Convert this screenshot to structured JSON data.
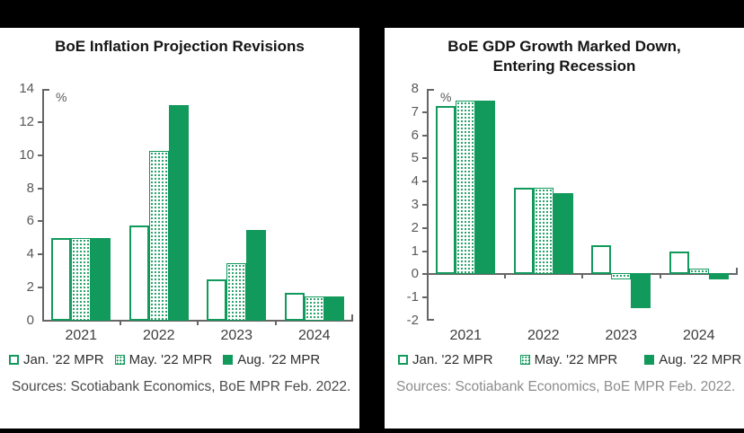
{
  "frame": {
    "background": "#000000"
  },
  "colors": {
    "series_green": "#12995c",
    "axis_line": "#666666",
    "tick_label": "#595959",
    "year_label": "#3d3d3d",
    "source_text_left": "#4a4a4a",
    "source_text_right": "#8c8c8c"
  },
  "chart_data": [
    {
      "type": "bar",
      "title": "BoE Inflation Projection Revisions",
      "title_lines": [
        "BoE Inflation Projection Revisions"
      ],
      "unit_label": "%",
      "categories": [
        "2021",
        "2022",
        "2023",
        "2024"
      ],
      "series": [
        {
          "name": "Jan. '22 MPR",
          "style": "outline",
          "values": [
            5.0,
            5.75,
            2.5,
            1.7
          ]
        },
        {
          "name": "May. '22 MPR",
          "style": "dotted",
          "values": [
            5.0,
            10.25,
            3.45,
            1.45
          ]
        },
        {
          "name": "Aug. '22 MPR",
          "style": "solid",
          "values": [
            5.0,
            13.0,
            5.5,
            1.45
          ]
        }
      ],
      "ylim": [
        0,
        14
      ],
      "ytick_step": 2,
      "grid": false,
      "legend_position": "bottom",
      "source": "Sources: Scotiabank Economics, BoE MPR Feb. 2022."
    },
    {
      "type": "bar",
      "title": "BoE GDP Growth Marked Down, Entering Recession",
      "title_lines": [
        "BoE GDP Growth Marked Down,",
        "Entering Recession"
      ],
      "unit_label": "%",
      "categories": [
        "2021",
        "2022",
        "2023",
        "2024"
      ],
      "series": [
        {
          "name": "Jan. '22 MPR",
          "style": "outline",
          "values": [
            7.25,
            3.75,
            1.25,
            1.0
          ]
        },
        {
          "name": "May. '22 MPR",
          "style": "dotted",
          "values": [
            7.5,
            3.75,
            -0.25,
            0.25
          ]
        },
        {
          "name": "Aug. '22 MPR",
          "style": "solid",
          "values": [
            7.5,
            3.5,
            -1.5,
            -0.25
          ]
        }
      ],
      "ylim": [
        -2,
        8
      ],
      "ytick_step": 1,
      "grid": false,
      "legend_position": "bottom",
      "source": "Sources: Scotiabank Economics, BoE MPR Feb. 2022."
    }
  ]
}
